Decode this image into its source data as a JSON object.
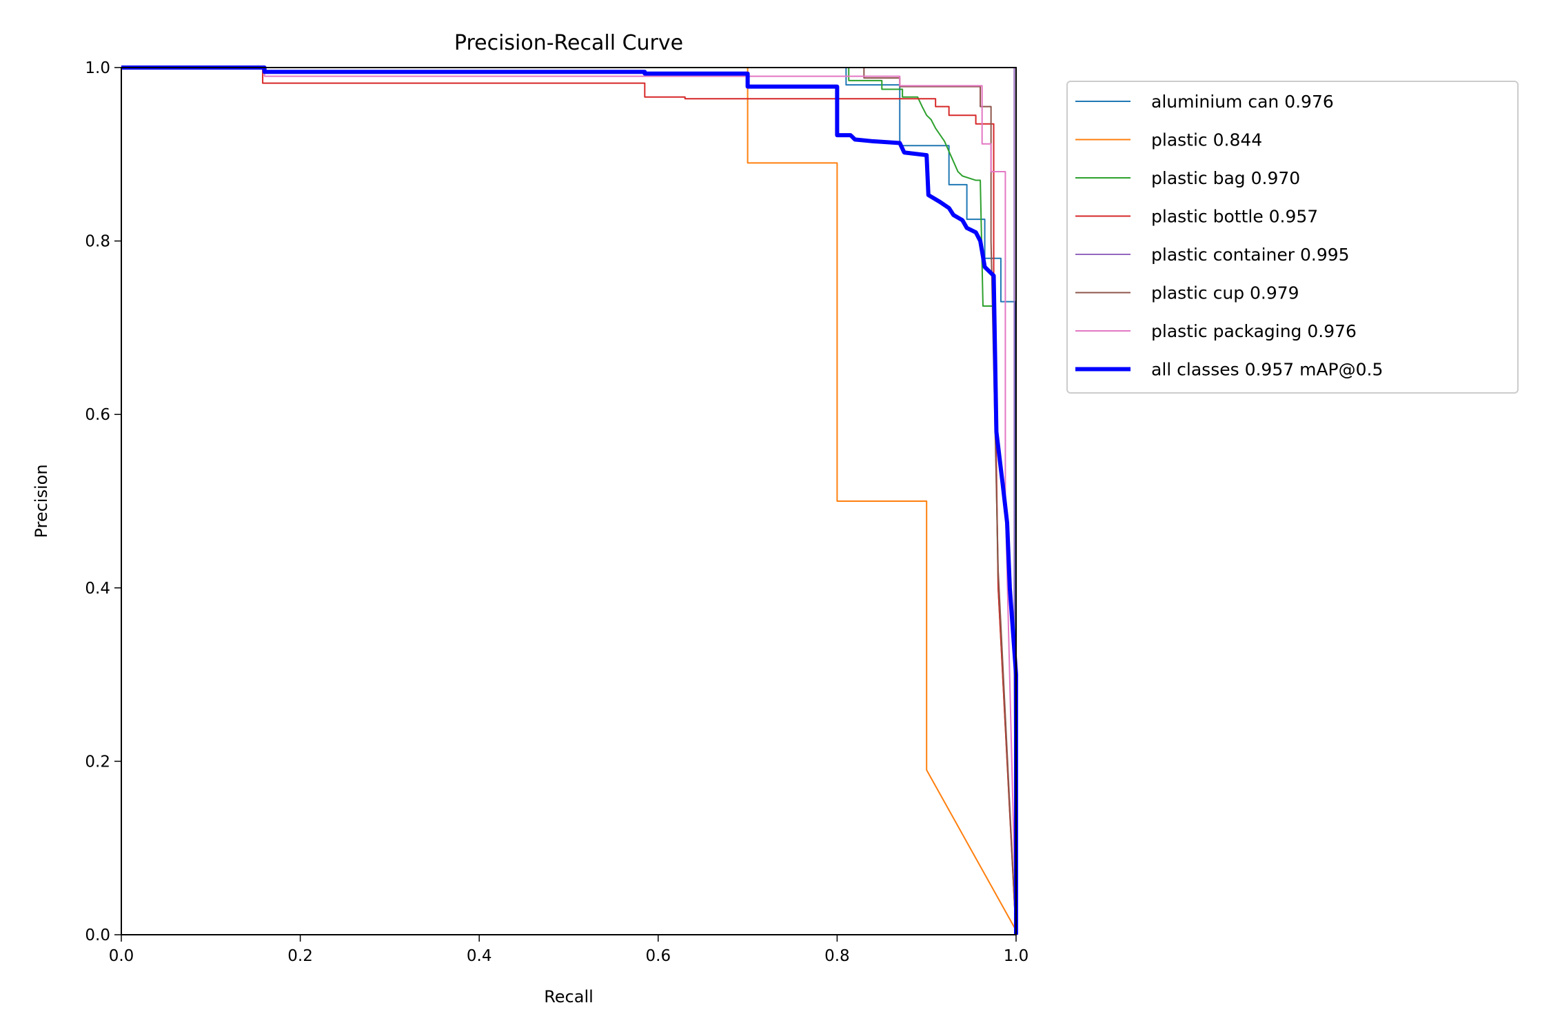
{
  "chart_data": {
    "type": "line",
    "title": "Precision-Recall Curve",
    "xlabel": "Recall",
    "ylabel": "Precision",
    "xlim": [
      0,
      1
    ],
    "ylim": [
      0,
      1
    ],
    "xticks": [
      "0.0",
      "0.2",
      "0.4",
      "0.6",
      "0.8",
      "1.0"
    ],
    "yticks": [
      "0.0",
      "0.2",
      "0.4",
      "0.6",
      "0.8",
      "1.0"
    ],
    "grid": false,
    "legend_position": "outside-top-right",
    "series": [
      {
        "name": "aluminium can 0.976",
        "color": "#1f77b4",
        "points": [
          [
            0,
            1
          ],
          [
            0.81,
            1
          ],
          [
            0.81,
            0.98
          ],
          [
            0.87,
            0.98
          ],
          [
            0.87,
            0.91
          ],
          [
            0.925,
            0.91
          ],
          [
            0.925,
            0.865
          ],
          [
            0.945,
            0.865
          ],
          [
            0.945,
            0.825
          ],
          [
            0.965,
            0.825
          ],
          [
            0.965,
            0.78
          ],
          [
            0.983,
            0.78
          ],
          [
            0.983,
            0.73
          ],
          [
            0.999,
            0.73
          ],
          [
            1,
            0
          ]
        ]
      },
      {
        "name": "plastic 0.844",
        "color": "#ff7f0e",
        "points": [
          [
            0,
            1
          ],
          [
            0.7,
            1
          ],
          [
            0.7,
            0.89
          ],
          [
            0.8,
            0.89
          ],
          [
            0.8,
            0.5
          ],
          [
            0.9,
            0.5
          ],
          [
            0.9,
            0.19
          ],
          [
            1,
            0.005
          ]
        ]
      },
      {
        "name": "plastic bag 0.970",
        "color": "#2ca02c",
        "points": [
          [
            0,
            1
          ],
          [
            0.813,
            1
          ],
          [
            0.813,
            0.985
          ],
          [
            0.85,
            0.985
          ],
          [
            0.85,
            0.975
          ],
          [
            0.873,
            0.975
          ],
          [
            0.873,
            0.966
          ],
          [
            0.89,
            0.966
          ],
          [
            0.895,
            0.955
          ],
          [
            0.9,
            0.945
          ],
          [
            0.905,
            0.94
          ],
          [
            0.91,
            0.93
          ],
          [
            0.92,
            0.915
          ],
          [
            0.935,
            0.88
          ],
          [
            0.94,
            0.875
          ],
          [
            0.955,
            0.87
          ],
          [
            0.96,
            0.87
          ],
          [
            0.963,
            0.725
          ],
          [
            0.975,
            0.725
          ],
          [
            0.975,
            0.705
          ],
          [
            0.98,
            0.4
          ],
          [
            1,
            0
          ]
        ]
      },
      {
        "name": "plastic bottle 0.957",
        "color": "#d62728",
        "points": [
          [
            0,
            1
          ],
          [
            0.158,
            1
          ],
          [
            0.158,
            0.982
          ],
          [
            0.585,
            0.982
          ],
          [
            0.585,
            0.966
          ],
          [
            0.63,
            0.966
          ],
          [
            0.63,
            0.964
          ],
          [
            0.91,
            0.964
          ],
          [
            0.91,
            0.955
          ],
          [
            0.925,
            0.955
          ],
          [
            0.925,
            0.945
          ],
          [
            0.955,
            0.945
          ],
          [
            0.955,
            0.935
          ],
          [
            0.975,
            0.935
          ],
          [
            0.975,
            0.75
          ],
          [
            0.98,
            0.4
          ],
          [
            1,
            0
          ]
        ]
      },
      {
        "name": "plastic container 0.995",
        "color": "#9467bd",
        "points": [
          [
            0,
            1
          ],
          [
            0.998,
            1
          ],
          [
            0.998,
            0.3
          ],
          [
            1,
            0
          ]
        ]
      },
      {
        "name": "plastic cup 0.979",
        "color": "#8c564b",
        "points": [
          [
            0,
            1
          ],
          [
            0.83,
            1
          ],
          [
            0.83,
            0.988
          ],
          [
            0.87,
            0.988
          ],
          [
            0.87,
            0.978
          ],
          [
            0.96,
            0.978
          ],
          [
            0.96,
            0.955
          ],
          [
            0.972,
            0.955
          ],
          [
            0.972,
            0.8
          ],
          [
            0.98,
            0.42
          ],
          [
            1,
            0
          ]
        ]
      },
      {
        "name": "plastic packaging 0.976",
        "color": "#e377c2",
        "points": [
          [
            0,
            1
          ],
          [
            0.16,
            1
          ],
          [
            0.16,
            0.99
          ],
          [
            0.87,
            0.99
          ],
          [
            0.87,
            0.979
          ],
          [
            0.962,
            0.979
          ],
          [
            0.962,
            0.912
          ],
          [
            0.972,
            0.912
          ],
          [
            0.972,
            0.88
          ],
          [
            0.988,
            0.88
          ],
          [
            0.988,
            0.5
          ],
          [
            1,
            0
          ]
        ]
      },
      {
        "name": "all classes 0.957 mAP@0.5",
        "color": "#0000ff",
        "thick": true,
        "points": [
          [
            0,
            1
          ],
          [
            0.16,
            1
          ],
          [
            0.16,
            0.995
          ],
          [
            0.585,
            0.995
          ],
          [
            0.585,
            0.993
          ],
          [
            0.7,
            0.993
          ],
          [
            0.7,
            0.978
          ],
          [
            0.8,
            0.978
          ],
          [
            0.8,
            0.922
          ],
          [
            0.815,
            0.922
          ],
          [
            0.82,
            0.917
          ],
          [
            0.84,
            0.915
          ],
          [
            0.87,
            0.913
          ],
          [
            0.875,
            0.902
          ],
          [
            0.9,
            0.899
          ],
          [
            0.902,
            0.853
          ],
          [
            0.915,
            0.845
          ],
          [
            0.925,
            0.838
          ],
          [
            0.93,
            0.83
          ],
          [
            0.94,
            0.824
          ],
          [
            0.945,
            0.815
          ],
          [
            0.955,
            0.81
          ],
          [
            0.96,
            0.8
          ],
          [
            0.965,
            0.77
          ],
          [
            0.975,
            0.76
          ],
          [
            0.978,
            0.58
          ],
          [
            0.985,
            0.52
          ],
          [
            0.99,
            0.475
          ],
          [
            0.993,
            0.4
          ],
          [
            1,
            0.3
          ],
          [
            1,
            0
          ]
        ]
      }
    ]
  }
}
